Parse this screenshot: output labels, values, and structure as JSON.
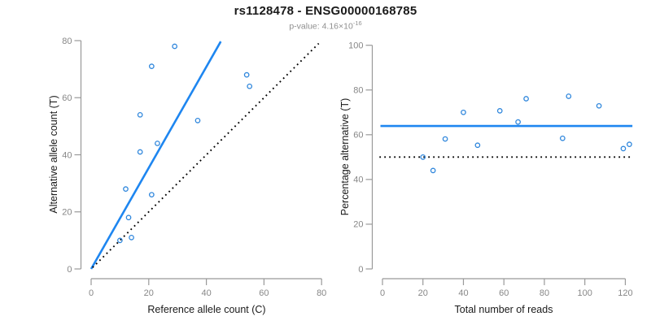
{
  "header": {
    "title": "rs1128478 - ENSG00000168785",
    "subtitle_prefix": "p-value: 4.16×10",
    "subtitle_exponent": "-16"
  },
  "colors": {
    "accent_blue": "#1e86f0",
    "point_blue": "#2e86dc",
    "dotted_black": "#000000",
    "axis_gray": "#999999",
    "tick_label_gray": "#878787"
  },
  "chart_data": [
    {
      "type": "scatter",
      "name": "allele-counts-scatter",
      "xlabel": "Reference allele count (C)",
      "ylabel": "Alternative allele count (T)",
      "xlim": [
        0,
        80
      ],
      "ylim": [
        0,
        80
      ],
      "xticks": [
        0,
        20,
        40,
        60,
        80
      ],
      "yticks": [
        0,
        20,
        40,
        60,
        80
      ],
      "grid": false,
      "points": [
        [
          10,
          10
        ],
        [
          12,
          28
        ],
        [
          13,
          18
        ],
        [
          14,
          11
        ],
        [
          17,
          41
        ],
        [
          17,
          54
        ],
        [
          21,
          26
        ],
        [
          21,
          71
        ],
        [
          23,
          44
        ],
        [
          29,
          78
        ],
        [
          37,
          52
        ],
        [
          54,
          68
        ],
        [
          55,
          64
        ]
      ],
      "lines": [
        {
          "name": "fitted-ratio-line",
          "kind": "segment",
          "style": "solid",
          "color_key": "accent_blue",
          "from": [
            0,
            0
          ],
          "to": [
            45,
            79.7
          ]
        },
        {
          "name": "identity-line",
          "kind": "segment",
          "style": "dotted",
          "color_key": "dotted_black",
          "from": [
            0.5,
            0.5
          ],
          "to": [
            79,
            79
          ]
        }
      ]
    },
    {
      "type": "scatter",
      "name": "percentage-vs-coverage-scatter",
      "xlabel": "Total number of reads",
      "ylabel": "Percentage alternative (T)",
      "xlim": [
        0,
        123
      ],
      "ylim": [
        0,
        100
      ],
      "xticks": [
        0,
        20,
        40,
        60,
        80,
        100,
        120
      ],
      "yticks": [
        0,
        20,
        40,
        60,
        80,
        100
      ],
      "grid": false,
      "points": [
        [
          20,
          50
        ],
        [
          25,
          44
        ],
        [
          31,
          58.1
        ],
        [
          40,
          70
        ],
        [
          47,
          55.3
        ],
        [
          58,
          70.7
        ],
        [
          67,
          65.7
        ],
        [
          71,
          76.1
        ],
        [
          89,
          58.4
        ],
        [
          92,
          77.2
        ],
        [
          107,
          72.9
        ],
        [
          119,
          53.8
        ],
        [
          122,
          55.7
        ]
      ],
      "lines": [
        {
          "name": "mean-percentage-line",
          "kind": "hline",
          "style": "solid",
          "color_key": "accent_blue",
          "y": 63.9,
          "x_from": -1,
          "x_to": 123.5
        },
        {
          "name": "fifty-percent-line",
          "kind": "hline",
          "style": "dotted",
          "color_key": "dotted_black",
          "y": 50,
          "x_from": -1.5,
          "x_to": 123.5
        }
      ]
    }
  ]
}
